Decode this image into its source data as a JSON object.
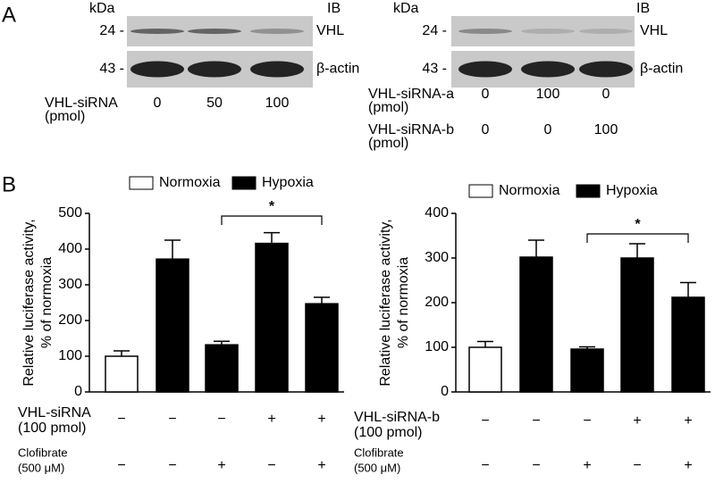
{
  "panels": {
    "a": "A",
    "b": "B"
  },
  "blots": [
    {
      "kda": "kDa",
      "ib": "IB",
      "markers": [
        "24 -",
        "43 -"
      ],
      "targets": [
        "VHL",
        "β-actin"
      ],
      "rows": [
        {
          "label": [
            "VHL-siRNA",
            "(pmol)"
          ],
          "values": [
            0,
            50,
            100
          ]
        }
      ]
    },
    {
      "kda": "kDa",
      "ib": "IB",
      "markers": [
        "24 -",
        "43 -"
      ],
      "targets": [
        "VHL",
        "β-actin"
      ],
      "rows": [
        {
          "label": [
            "VHL-siRNA-a",
            "(pmol)"
          ],
          "values": [
            0,
            100,
            0
          ]
        },
        {
          "label": [
            "VHL-siRNA-b",
            "(pmol)"
          ],
          "values": [
            0,
            0,
            100
          ]
        }
      ]
    }
  ],
  "chart_data": [
    {
      "type": "bar",
      "ylabel": [
        "Relative luciferase activity,",
        "% of normoxia"
      ],
      "categories": [
        null,
        null,
        null,
        null,
        null
      ],
      "series": [
        {
          "name": "Normoxia",
          "color": "#ffffff",
          "values": [
            100,
            null,
            null,
            null,
            null
          ],
          "errors": [
            15,
            null,
            null,
            null,
            null
          ]
        },
        {
          "name": "Hypoxia",
          "color": "#000000",
          "values": [
            null,
            372,
            132,
            416,
            247
          ],
          "errors": [
            null,
            53,
            10,
            30,
            18
          ]
        }
      ],
      "ylim": [
        0,
        500
      ],
      "yticks": [
        0,
        100,
        200,
        300,
        400,
        500
      ],
      "significance": {
        "from": 2,
        "to": 4,
        "label": "*"
      },
      "conditions": [
        {
          "label": [
            "VHL-siRNA",
            "(100 pmol)"
          ],
          "values": [
            "−",
            "−",
            "−",
            "+",
            "+"
          ]
        },
        {
          "label": [
            "Clofibrate",
            "(500 μM)"
          ],
          "values": [
            "−",
            "−",
            "+",
            "−",
            "+"
          ]
        }
      ]
    },
    {
      "type": "bar",
      "ylabel": [
        "Relative luciferase activity,",
        "% of normoxia"
      ],
      "categories": [
        null,
        null,
        null,
        null,
        null
      ],
      "series": [
        {
          "name": "Normoxia",
          "color": "#ffffff",
          "values": [
            100,
            null,
            null,
            null,
            null
          ],
          "errors": [
            13,
            null,
            null,
            null,
            null
          ]
        },
        {
          "name": "Hypoxia",
          "color": "#000000",
          "values": [
            null,
            302,
            96,
            300,
            212
          ],
          "errors": [
            null,
            38,
            5,
            32,
            33
          ]
        }
      ],
      "ylim": [
        0,
        400
      ],
      "yticks": [
        0,
        100,
        200,
        300,
        400
      ],
      "significance": {
        "from": 2,
        "to": 4,
        "label": "*"
      },
      "conditions": [
        {
          "label": [
            "VHL-siRNA-b",
            "(100 pmol)"
          ],
          "values": [
            "−",
            "−",
            "−",
            "+",
            "+"
          ]
        },
        {
          "label": [
            "Clofibrate",
            "(500 μM)"
          ],
          "values": [
            "−",
            "−",
            "+",
            "−",
            "+"
          ]
        }
      ]
    }
  ]
}
